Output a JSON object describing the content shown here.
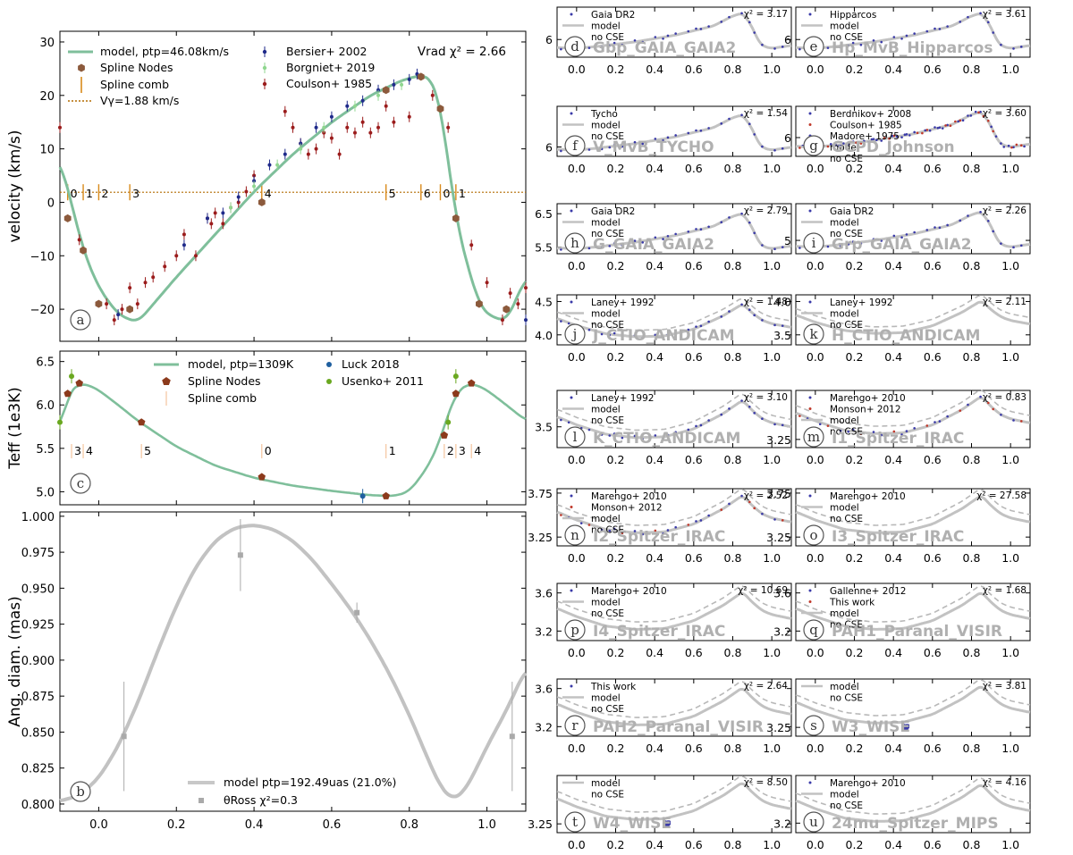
{
  "chart_data": [
    {
      "id": "a",
      "type": "line",
      "title": "Vrad χ² = 2.66",
      "ylabel": "velocity (km/s)",
      "xlim": [
        -0.1,
        1.1
      ],
      "ylim": [
        -26,
        32
      ],
      "xticks": [
        0.0,
        0.2,
        0.4,
        0.6,
        0.8,
        1.0
      ],
      "yticks": [
        30,
        20,
        10,
        0,
        -10,
        -20
      ],
      "ytick_labels": [
        "30",
        "20",
        "10",
        "0",
        "−10",
        "−20"
      ],
      "legend": [
        {
          "label": "model, ptp=46.08km/s",
          "color": "#7fbf9b",
          "marker": "line"
        },
        {
          "label": "Spline Nodes",
          "color": "#8c5a3c",
          "marker": "hexagon"
        },
        {
          "label": "Spline comb",
          "color": "#d98a1b",
          "marker": "vline"
        },
        {
          "label": "Vγ=1.88 km/s",
          "color": "#b36b00",
          "marker": "dotted"
        },
        {
          "label": "Bersier+ 2002",
          "color": "#1f2a8a",
          "marker": "point"
        },
        {
          "label": "Borgniet+ 2019",
          "color": "#8fd68f",
          "marker": "point"
        },
        {
          "label": "Coulson+ 1985",
          "color": "#9b1c1c",
          "marker": "point"
        }
      ],
      "gamma": 1.88,
      "model": {
        "x": [
          -0.1,
          -0.06,
          -0.04,
          0.0,
          0.05,
          0.1,
          0.2,
          0.3,
          0.4,
          0.5,
          0.6,
          0.7,
          0.78,
          0.83,
          0.86,
          0.88,
          0.9,
          0.92,
          0.95,
          0.98,
          1.0,
          1.05,
          1.1
        ],
        "y": [
          8,
          -3,
          -9,
          -16,
          -21,
          -22.5,
          -14,
          -6,
          2,
          9,
          15,
          20,
          22.8,
          23.8,
          23,
          18,
          8,
          -3,
          -12,
          -19,
          -21,
          -22.3,
          -14
        ]
      },
      "nodes": {
        "x": [
          -0.08,
          -0.04,
          0.0,
          0.08,
          0.42,
          0.74,
          0.83,
          0.88,
          0.92,
          0.98,
          1.05
        ],
        "y": [
          -3,
          -9,
          -19,
          -20,
          0,
          21,
          23.5,
          17.5,
          -3,
          -19,
          -20
        ]
      },
      "comb": {
        "x": [
          -0.08,
          -0.04,
          0.0,
          0.08,
          0.42,
          0.74,
          0.83,
          0.88,
          0.92
        ],
        "labels": [
          "0",
          "1",
          "2",
          "3",
          "4",
          "5",
          "6",
          "0",
          "1"
        ]
      },
      "series": [
        {
          "name": "Coulson+ 1985",
          "x": [
            -0.1,
            -0.05,
            0.02,
            0.04,
            0.06,
            0.08,
            0.1,
            0.12,
            0.14,
            0.17,
            0.2,
            0.22,
            0.25,
            0.28,
            0.29,
            0.3,
            0.32,
            0.34,
            0.36,
            0.38,
            0.4,
            0.48,
            0.5,
            0.52,
            0.54,
            0.56,
            0.58,
            0.6,
            0.62,
            0.64,
            0.66,
            0.68,
            0.7,
            0.72,
            0.74,
            0.76,
            0.8,
            0.86,
            0.9,
            0.96,
            1.0,
            1.04,
            1.06,
            1.08,
            1.1
          ],
          "y": [
            14,
            -7,
            -19,
            -22,
            -20,
            -16,
            -19,
            -15,
            -14,
            -12,
            -10,
            -6,
            -10,
            -3,
            -4,
            -2,
            -4,
            -1,
            0,
            2,
            5,
            17,
            14,
            11,
            9,
            10,
            13,
            12,
            9,
            14,
            13,
            15,
            13,
            14,
            18,
            15,
            16,
            20,
            14,
            -8,
            -15,
            -22,
            -17,
            -19,
            -16
          ]
        },
        {
          "name": "Bersier+ 2002",
          "x": [
            0.05,
            0.22,
            0.28,
            0.32,
            0.36,
            0.4,
            0.44,
            0.48,
            0.52,
            0.56,
            0.6,
            0.64,
            0.68,
            0.72,
            0.76,
            0.8,
            0.82,
            1.1
          ],
          "y": [
            -21,
            -8,
            -3,
            -2,
            1,
            4,
            7,
            9,
            11,
            14,
            16,
            18,
            19,
            21,
            22,
            23,
            24,
            -22
          ]
        },
        {
          "name": "Borgniet+ 2019",
          "x": [
            0.34,
            0.4,
            0.46,
            0.52,
            0.58,
            0.66,
            0.72,
            0.78
          ],
          "y": [
            -1,
            3,
            7,
            10,
            14,
            18,
            20,
            22
          ]
        }
      ]
    },
    {
      "id": "c",
      "type": "line",
      "title": "",
      "ylabel": "Teff (1e3K)",
      "xlim": [
        -0.1,
        1.1
      ],
      "ylim": [
        4.85,
        6.62
      ],
      "yticks": [
        6.5,
        6.0,
        5.5,
        5.0
      ],
      "ytick_labels": [
        "6.5",
        "6.0",
        "5.5",
        "5.0"
      ],
      "legend": [
        {
          "label": "model, ptp=1309K",
          "color": "#7fbf9b",
          "marker": "line"
        },
        {
          "label": "Spline Nodes",
          "color": "#8c3a1c",
          "marker": "pentagon"
        },
        {
          "label": "Spline comb",
          "color": "#f5c59e",
          "marker": "vline"
        },
        {
          "label": "Luck 2018",
          "color": "#1f5f9f",
          "marker": "point"
        },
        {
          "label": "Usenko+ 2011",
          "color": "#6aa820",
          "marker": "point"
        }
      ],
      "model": {
        "x": [
          -0.1,
          -0.08,
          -0.05,
          -0.02,
          0.0,
          0.05,
          0.1,
          0.2,
          0.3,
          0.4,
          0.5,
          0.6,
          0.7,
          0.76,
          0.8,
          0.85,
          0.88,
          0.9,
          0.92,
          0.95,
          0.98,
          1.0,
          1.05,
          1.1
        ],
        "y": [
          5.7,
          6.13,
          6.25,
          6.22,
          6.17,
          6.0,
          5.82,
          5.52,
          5.3,
          5.16,
          5.07,
          5.01,
          4.96,
          4.95,
          5.0,
          5.3,
          5.6,
          5.9,
          6.13,
          6.25,
          6.22,
          6.17,
          6.0,
          5.82
        ]
      },
      "nodes": {
        "x": [
          -0.08,
          -0.05,
          0.11,
          0.42,
          0.74,
          0.89,
          0.92,
          0.96
        ],
        "y": [
          6.13,
          6.25,
          5.8,
          5.17,
          4.95,
          5.65,
          6.13,
          6.25
        ]
      },
      "comb": {
        "x": [
          -0.07,
          -0.04,
          0.11,
          0.42,
          0.74,
          0.89,
          0.92,
          0.96
        ],
        "labels": [
          "3",
          "4",
          "5",
          "0",
          "1",
          "2",
          "3",
          "4"
        ]
      },
      "series": [
        {
          "name": "Luck 2018",
          "x": [
            0.68
          ],
          "y": [
            4.95
          ]
        },
        {
          "name": "Usenko+ 2011",
          "x": [
            -0.1,
            -0.07,
            0.92,
            0.9
          ],
          "y": [
            5.8,
            6.33,
            6.33,
            5.8
          ]
        }
      ]
    },
    {
      "id": "b",
      "type": "line",
      "ylabel": "Ang. diam. (mas)",
      "xlim": [
        -0.1,
        1.1
      ],
      "ylim": [
        0.795,
        1.003
      ],
      "xticks": [
        0.0,
        0.2,
        0.4,
        0.6,
        0.8,
        1.0
      ],
      "xtick_labels": [
        "0.0",
        "0.2",
        "0.4",
        "0.6",
        "0.8",
        "1.0"
      ],
      "yticks": [
        1.0,
        0.975,
        0.95,
        0.925,
        0.9,
        0.875,
        0.85,
        0.825,
        0.8
      ],
      "ytick_labels": [
        "1.000",
        "0.975",
        "0.950",
        "0.925",
        "0.900",
        "0.875",
        "0.850",
        "0.825",
        "0.800"
      ],
      "legend": [
        {
          "label": "model ptp=192.49uas (21.0%)",
          "color": "#c8c8c8",
          "marker": "line"
        },
        {
          "label": "θRoss χ²=0.3",
          "color": "#aaaaaa",
          "marker": "point"
        }
      ],
      "model": {
        "x": [
          -0.1,
          -0.05,
          0.0,
          0.05,
          0.1,
          0.15,
          0.2,
          0.25,
          0.3,
          0.35,
          0.4,
          0.45,
          0.5,
          0.55,
          0.6,
          0.65,
          0.7,
          0.75,
          0.8,
          0.85,
          0.88,
          0.91,
          0.94,
          0.97,
          1.0,
          1.05,
          1.1
        ],
        "y": [
          0.802,
          0.806,
          0.818,
          0.84,
          0.87,
          0.905,
          0.938,
          0.965,
          0.983,
          0.992,
          0.994,
          0.991,
          0.983,
          0.97,
          0.953,
          0.935,
          0.914,
          0.89,
          0.862,
          0.83,
          0.812,
          0.803,
          0.808,
          0.823,
          0.84,
          0.865,
          0.894
        ]
      },
      "series": [
        {
          "name": "θRoss",
          "x": [
            0.065,
            0.365,
            0.665,
            1.065
          ],
          "y": [
            0.847,
            0.973,
            0.933,
            0.847
          ],
          "err": [
            0.038,
            0.025,
            0.007,
            0.038
          ]
        }
      ]
    },
    {
      "id": "d",
      "type": "line",
      "band": "Gbp_GAIA_GAIA2",
      "chi": "χ² = 3.17",
      "legend": [
        "Gaia DR2",
        "model",
        "no CSE"
      ],
      "yticks": [
        6
      ],
      "ytick_labels": [
        "6"
      ],
      "ylim": [
        5.4,
        7.1
      ],
      "amp": 1.0,
      "base": 5.7,
      "dashed": false,
      "pts": "curve"
    },
    {
      "id": "e",
      "type": "line",
      "band": "Hp_MvB_Hipparcos",
      "chi": "χ² = 3.61",
      "legend": [
        "Hipparcos",
        "model",
        "no CSE"
      ],
      "yticks": [
        6
      ],
      "ytick_labels": [
        "6"
      ],
      "ylim": [
        5.4,
        7.1
      ],
      "amp": 1.0,
      "base": 5.7,
      "dashed": false,
      "pts": "curve"
    },
    {
      "id": "f",
      "type": "line",
      "band": "V_MvB_TYCHO",
      "chi": "χ² = 1.54",
      "legend": [
        "Tycho",
        "model",
        "no CSE"
      ],
      "yticks": [
        6
      ],
      "ytick_labels": [
        "6"
      ],
      "ylim": [
        5.7,
        7.3
      ],
      "amp": 1.0,
      "base": 5.9,
      "dashed": false,
      "pts": "curve"
    },
    {
      "id": "g",
      "type": "line",
      "band": "GCPD_Johnson",
      "chi": "χ² = 3.60",
      "legend": [
        "Berdnikov+ 2008",
        "Coulson+ 1985",
        "Madore+ 1975",
        "model",
        "no CSE"
      ],
      "yticks": [
        6
      ],
      "ytick_labels": [
        "6"
      ],
      "ylim": [
        5.4,
        7.0
      ],
      "amp": 1.0,
      "base": 5.7,
      "dashed": false,
      "pts": "dense"
    },
    {
      "id": "h",
      "type": "line",
      "band": "G_GAIA_GAIA2",
      "chi": "χ² = 2.79",
      "legend": [
        "Gaia DR2",
        "model",
        "no CSE"
      ],
      "yticks": [
        6.5,
        5.5
      ],
      "ytick_labels": [
        "6.5",
        "5.5"
      ],
      "ylim": [
        5.3,
        6.8
      ],
      "amp": 1.0,
      "base": 5.45,
      "dashed": false,
      "pts": "curve"
    },
    {
      "id": "i",
      "type": "line",
      "band": "Grp_GAIA_GAIA2",
      "chi": "χ² = 2.26",
      "legend": [
        "Gaia DR2",
        "model",
        "no CSE"
      ],
      "yticks": [
        5
      ],
      "ytick_labels": [
        "5"
      ],
      "ylim": [
        4.6,
        6.1
      ],
      "amp": 1.0,
      "base": 4.8,
      "dashed": false,
      "pts": "curve"
    },
    {
      "id": "j",
      "type": "line",
      "band": "J_CTIO_ANDICAM",
      "chi": "χ² = 1.48",
      "legend": [
        "Laney+ 1992",
        "model",
        "no CSE"
      ],
      "yticks": [
        4.5,
        4.0
      ],
      "ytick_labels": [
        "4.5",
        "4.0"
      ],
      "ylim": [
        3.85,
        4.6
      ],
      "amp": 1.0,
      "base": 3.95,
      "dashed": true,
      "pts": "curve"
    },
    {
      "id": "k",
      "type": "line",
      "band": "H_CTIO_ANDICAM",
      "chi": "χ² = 2.11",
      "legend": [
        "Laney+ 1992",
        "model",
        "no CSE"
      ],
      "yticks": [
        4.0,
        3.5
      ],
      "ytick_labels": [
        "4.0",
        "3.5"
      ],
      "ylim": [
        3.35,
        4.1
      ],
      "amp": 1.0,
      "base": 3.5,
      "dashed": true,
      "pts": "none"
    },
    {
      "id": "l",
      "type": "line",
      "band": "K_CTIO_ANDICAM",
      "chi": "χ² = 3.10",
      "legend": [
        "Laney+ 1992",
        "model",
        "no CSE"
      ],
      "yticks": [
        3.5
      ],
      "ytick_labels": [
        "3.5"
      ],
      "ylim": [
        3.3,
        3.85
      ],
      "amp": 1.0,
      "base": 3.38,
      "dashed": true,
      "pts": "curve"
    },
    {
      "id": "m",
      "type": "line",
      "band": "I1_Spitzer_IRAC",
      "chi": "χ² = 0.83",
      "legend": [
        "Marengo+ 2010",
        "Monson+ 2012",
        "model",
        "no CSE"
      ],
      "yticks": [
        3.25
      ],
      "ytick_labels": [
        "3.25"
      ],
      "ylim": [
        3.15,
        3.85
      ],
      "amp": 1.0,
      "base": 3.3,
      "dashed": true,
      "pts": "curve"
    },
    {
      "id": "n",
      "type": "line",
      "band": "I2_Spitzer_IRAC",
      "chi": "χ² = 2.52",
      "legend": [
        "Marengo+ 2010",
        "Monson+ 2012",
        "model",
        "no CSE"
      ],
      "yticks": [
        3.75,
        3.25
      ],
      "ytick_labels": [
        "3.75",
        "3.25"
      ],
      "ylim": [
        3.15,
        3.8
      ],
      "amp": 1.0,
      "base": 3.28,
      "dashed": true,
      "pts": "curve"
    },
    {
      "id": "o",
      "type": "line",
      "band": "I3_Spitzer_IRAC",
      "chi": "χ² = 27.58",
      "legend": [
        "Marengo+ 2010",
        "model",
        "no CSE"
      ],
      "yticks": [
        3.75,
        3.25
      ],
      "ytick_labels": [
        "3.75",
        "3.25"
      ],
      "ylim": [
        3.15,
        3.8
      ],
      "amp": 1.0,
      "base": 3.28,
      "dashed": true,
      "pts": "none"
    },
    {
      "id": "p",
      "type": "line",
      "band": "I4_Spitzer_IRAC",
      "chi": "χ² = 10.69",
      "legend": [
        "Marengo+ 2010",
        "model",
        "no CSE"
      ],
      "yticks": [
        3.6,
        3.2
      ],
      "ytick_labels": [
        "3.6",
        "3.2"
      ],
      "ylim": [
        3.1,
        3.7
      ],
      "amp": 1.0,
      "base": 3.2,
      "dashed": true,
      "pts": "none"
    },
    {
      "id": "q",
      "type": "line",
      "band": "PAH1_Paranal_VISIR",
      "chi": "χ² = 1.68",
      "legend": [
        "Gallenne+ 2012",
        "This work",
        "model",
        "no CSE"
      ],
      "yticks": [
        3.6,
        3.2
      ],
      "ytick_labels": [
        "3.6",
        "3.2"
      ],
      "ylim": [
        3.1,
        3.7
      ],
      "amp": 1.0,
      "base": 3.2,
      "dashed": true,
      "pts": "none"
    },
    {
      "id": "r",
      "type": "line",
      "band": "PAH2_Paranal_VISIR",
      "chi": "χ² = 2.64",
      "legend": [
        "This work",
        "model",
        "no CSE"
      ],
      "yticks": [
        3.6,
        3.2
      ],
      "ytick_labels": [
        "3.6",
        "3.2"
      ],
      "ylim": [
        3.1,
        3.7
      ],
      "amp": 1.0,
      "base": 3.2,
      "dashed": true,
      "pts": "none"
    },
    {
      "id": "s",
      "type": "line",
      "band": "W3_WISE",
      "chi": "χ² = 3.81",
      "legend": [
        "model",
        "no CSE"
      ],
      "yticks": [
        3.25
      ],
      "ytick_labels": [
        "3.25"
      ],
      "ylim": [
        3.15,
        3.8
      ],
      "amp": 1.0,
      "base": 3.28,
      "dashed": true,
      "pts": "cluster"
    },
    {
      "id": "t",
      "type": "line",
      "band": "W4_WISE",
      "chi": "χ² = 8.50",
      "legend": [
        "model",
        "no CSE"
      ],
      "yticks": [
        3.25
      ],
      "ytick_labels": [
        "3.25"
      ],
      "ylim": [
        3.15,
        3.8
      ],
      "amp": 1.0,
      "base": 3.28,
      "dashed": true,
      "pts": "cluster"
    },
    {
      "id": "u",
      "type": "line",
      "band": "24mu_Spitzer_MIPS",
      "chi": "χ² = 4.16",
      "legend": [
        "Marengo+ 2010",
        "model",
        "no CSE"
      ],
      "yticks": [
        3.2
      ],
      "ytick_labels": [
        "3.2"
      ],
      "ylim": [
        3.1,
        3.7
      ],
      "amp": 1.0,
      "base": 3.2,
      "dashed": true,
      "pts": "none"
    }
  ],
  "small_xticks": [
    0.0,
    0.2,
    0.4,
    0.6,
    0.8,
    1.0
  ],
  "small_xtick_labels": [
    "0.0",
    "0.2",
    "0.4",
    "0.6",
    "0.8",
    "1.0"
  ],
  "colors": {
    "model_green": "#7fbf9b",
    "model_grey": "#c2c2c2",
    "pt_blue": "#3a3aa8",
    "pt_red": "#c0392b"
  }
}
